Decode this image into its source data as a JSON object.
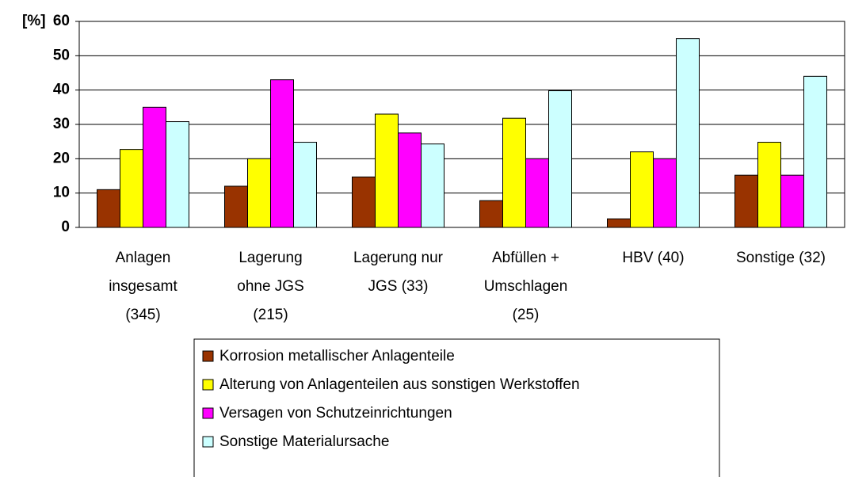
{
  "chart_data": {
    "type": "bar",
    "y_label": "[%]",
    "categories": [
      [
        "Anlagen",
        "insgesamt",
        "(345)"
      ],
      [
        "Lagerung",
        "ohne JGS",
        "(215)"
      ],
      [
        "Lagerung nur",
        "JGS (33)"
      ],
      [
        "Abfüllen +",
        "Umschlagen",
        "(25)"
      ],
      [
        "HBV (40)"
      ],
      [
        "Sonstige (32)"
      ]
    ],
    "series": [
      {
        "name": "Korrosion metallischer Anlagenteile",
        "color": "#993300",
        "values": [
          11,
          12,
          14.7,
          7.8,
          2.5,
          15.2
        ]
      },
      {
        "name": "Alterung von Anlagenteilen aus sonstigen Werkstoffen",
        "color": "#ffff00",
        "values": [
          22.7,
          20,
          33,
          31.8,
          22,
          24.8
        ]
      },
      {
        "name": "Versagen von Schutzeinrichtungen",
        "color": "#ff00ff",
        "values": [
          35,
          43,
          27.5,
          20,
          20,
          15.2
        ]
      },
      {
        "name": "Sonstige Materialursache",
        "color": "#ccffff",
        "values": [
          30.8,
          24.8,
          24.3,
          39.8,
          55,
          44
        ]
      }
    ],
    "ylim": [
      0,
      60
    ],
    "yticks": [
      0,
      10,
      20,
      30,
      40,
      50,
      60
    ],
    "grid": true
  }
}
